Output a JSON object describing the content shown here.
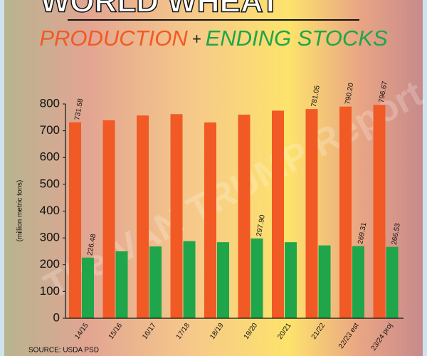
{
  "chart_data": {
    "type": "bar",
    "title": "WORLD WHEAT",
    "subtitle_plus": "+",
    "watermark": "The VAN TRUMP Report",
    "source": "SOURCE: USDA PSD",
    "y_label": "(million metric tons)",
    "categories": [
      "14/15",
      "15/16",
      "16/17",
      "17/18",
      "18/19",
      "19/20",
      "20/21",
      "21/22",
      "22/23 est",
      "23/24 proj"
    ],
    "series": [
      {
        "name": "PRODUCTION",
        "color": "#f15a24",
        "values": [
          731.58,
          739,
          757,
          762,
          731,
          760,
          775,
          781.05,
          790.2,
          796.67
        ],
        "value_labels": [
          "731.58",
          null,
          null,
          null,
          null,
          null,
          null,
          "781.05",
          "790.20",
          "796.67"
        ]
      },
      {
        "name": "ENDING STOCKS",
        "color": "#1fa64a",
        "values": [
          226.48,
          250,
          268,
          288,
          284,
          297.9,
          284,
          272,
          269.31,
          266.53
        ],
        "value_labels": [
          "226.48",
          null,
          null,
          null,
          null,
          "297.90",
          null,
          null,
          "269.31",
          "266.53"
        ]
      }
    ],
    "ylim": [
      0,
      800
    ],
    "yticks": [
      0,
      100,
      200,
      300,
      400,
      500,
      600,
      700,
      800
    ]
  }
}
